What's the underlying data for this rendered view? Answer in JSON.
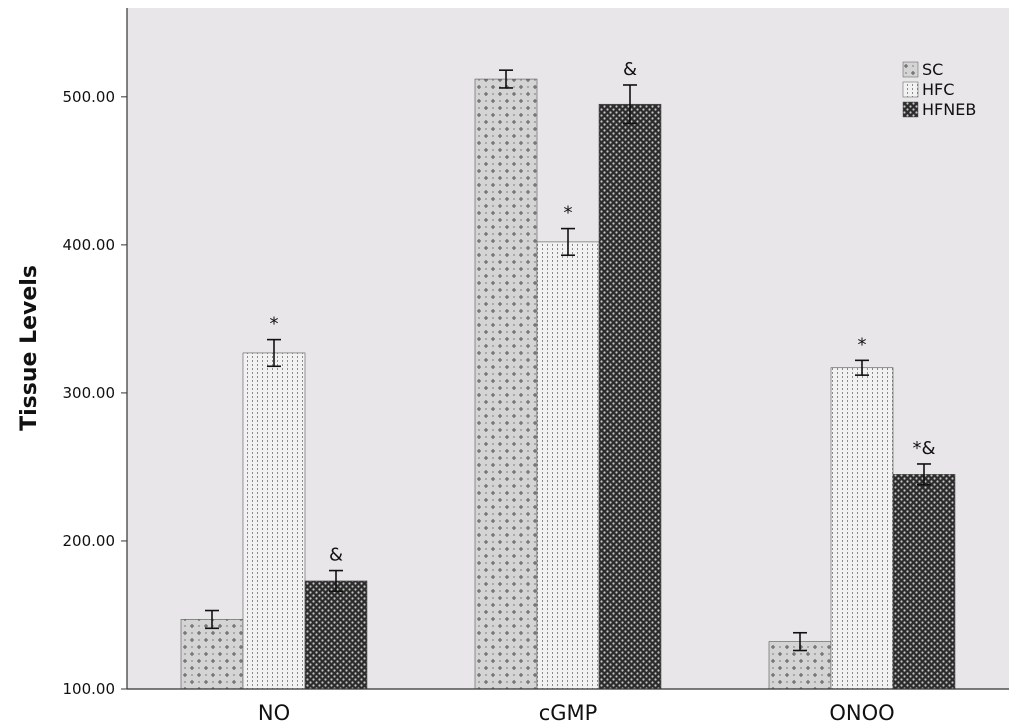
{
  "chart_data": {
    "type": "bar",
    "ylabel": "Tissue Levels",
    "xlabel": "",
    "ylim": [
      100,
      560
    ],
    "yticks": [
      "100.00",
      "200.00",
      "300.00",
      "400.00",
      "500.00"
    ],
    "ytick_values": [
      100,
      200,
      300,
      400,
      500
    ],
    "categories": [
      "NO",
      "cGMP",
      "ONOO"
    ],
    "series": [
      {
        "name": "SC",
        "values": [
          147,
          512,
          132
        ],
        "errors": [
          6,
          6,
          6
        ],
        "annotations": [
          "",
          "",
          ""
        ],
        "color": "#b7b7b7"
      },
      {
        "name": "HFC",
        "values": [
          327,
          402,
          317
        ],
        "errors": [
          9,
          9,
          5
        ],
        "annotations": [
          "*",
          "*",
          "*"
        ],
        "color": "#e2e2e2"
      },
      {
        "name": "HFNEB",
        "values": [
          173,
          495,
          245
        ],
        "errors": [
          7,
          13,
          7
        ],
        "annotations": [
          "&",
          "&",
          "*&"
        ],
        "color": "#2a2a2a"
      }
    ],
    "legend": {
      "position": "top-right",
      "entries": [
        "SC",
        "HFC",
        "HFNEB"
      ]
    },
    "grid": false,
    "background": "#e9e6e9"
  }
}
